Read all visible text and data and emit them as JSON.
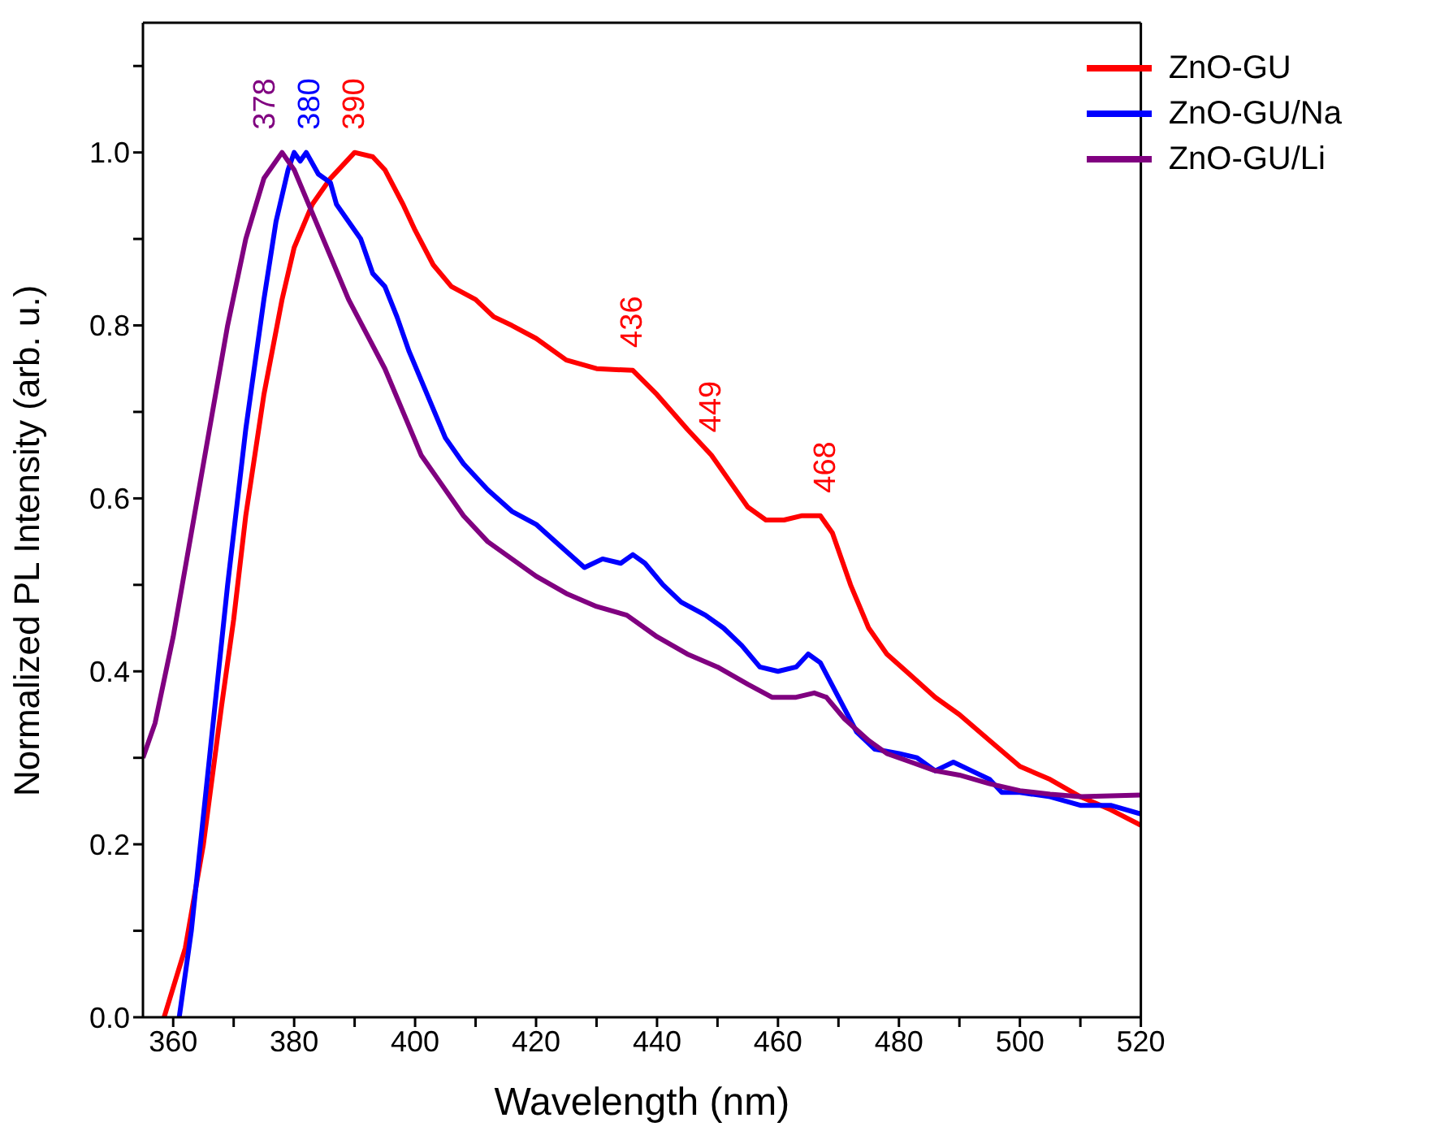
{
  "chart_data": {
    "type": "line",
    "xlabel": "Wavelength (nm)",
    "ylabel": "Normalized PL Intensity (arb. u.)",
    "xlim": [
      355,
      520
    ],
    "ylim": [
      0,
      1.15
    ],
    "xticks": [
      360,
      {
        "value": 370,
        "label": null
      },
      380,
      {
        "value": 390,
        "label": null
      },
      400,
      {
        "value": 410,
        "label": null
      },
      420,
      {
        "value": 430,
        "label": null
      },
      440,
      {
        "value": 450,
        "label": null
      },
      460,
      {
        "value": 470,
        "label": null
      },
      480,
      {
        "value": 490,
        "label": null
      },
      500,
      {
        "value": 510,
        "label": null
      },
      520
    ],
    "yticks": [
      {
        "value": 0,
        "label": "0.0"
      },
      {
        "value": 0.1,
        "label": null
      },
      {
        "value": 0.2,
        "label": "0.2"
      },
      {
        "value": 0.3,
        "label": null
      },
      {
        "value": 0.4,
        "label": "0.4"
      },
      {
        "value": 0.5,
        "label": null
      },
      {
        "value": 0.6,
        "label": "0.6"
      },
      {
        "value": 0.7,
        "label": null
      },
      {
        "value": 0.8,
        "label": "0.8"
      },
      {
        "value": 0.9,
        "label": null
      },
      {
        "value": 1.0,
        "label": "1.0"
      },
      {
        "value": 1.1,
        "label": null
      }
    ],
    "grid": false,
    "legend": "top right",
    "marker": "none",
    "line_style": "solid",
    "series": [
      {
        "name": "ZnO-GU",
        "color": "#ff0000",
        "x": [
          358.5,
          362,
          365,
          368,
          370,
          372,
          375,
          378,
          380,
          383,
          386,
          390,
          393,
          395,
          398,
          400,
          403,
          406,
          410,
          413,
          416,
          420,
          425,
          430,
          436,
          440,
          445,
          449,
          452,
          455,
          458,
          461,
          464,
          467,
          469,
          472,
          475,
          478,
          482,
          486,
          490,
          495,
          500,
          505,
          510,
          515,
          520
        ],
        "values": [
          0,
          0.08,
          0.2,
          0.36,
          0.46,
          0.58,
          0.72,
          0.83,
          0.89,
          0.94,
          0.97,
          1.0,
          0.995,
          0.98,
          0.94,
          0.91,
          0.87,
          0.845,
          0.83,
          0.81,
          0.8,
          0.785,
          0.76,
          0.75,
          0.748,
          0.72,
          0.68,
          0.65,
          0.62,
          0.59,
          0.575,
          0.575,
          0.58,
          0.58,
          0.56,
          0.5,
          0.45,
          0.42,
          0.395,
          0.37,
          0.35,
          0.32,
          0.29,
          0.275,
          0.255,
          0.24,
          0.222
        ]
      },
      {
        "name": "ZnO-GU/Na",
        "color": "#0000ff",
        "x": [
          361,
          363,
          366,
          369,
          372,
          375,
          377,
          379,
          380,
          381,
          382,
          384,
          386,
          387,
          389,
          391,
          393,
          395,
          397,
          399,
          402,
          405,
          408,
          412,
          416,
          420,
          424,
          428,
          431,
          434,
          436,
          438,
          441,
          444,
          448,
          451,
          454,
          457,
          460,
          463,
          465,
          467,
          470,
          473,
          476,
          480,
          483,
          486,
          489,
          492,
          495,
          497,
          500,
          505,
          510,
          515,
          520
        ],
        "values": [
          0,
          0.1,
          0.3,
          0.5,
          0.68,
          0.83,
          0.92,
          0.98,
          1.0,
          0.99,
          1.0,
          0.975,
          0.965,
          0.94,
          0.92,
          0.9,
          0.86,
          0.845,
          0.81,
          0.77,
          0.72,
          0.67,
          0.64,
          0.61,
          0.585,
          0.57,
          0.545,
          0.52,
          0.53,
          0.525,
          0.535,
          0.525,
          0.5,
          0.48,
          0.465,
          0.45,
          0.43,
          0.405,
          0.4,
          0.405,
          0.42,
          0.41,
          0.37,
          0.33,
          0.31,
          0.305,
          0.3,
          0.285,
          0.295,
          0.285,
          0.275,
          0.26,
          0.26,
          0.255,
          0.245,
          0.245,
          0.235
        ]
      },
      {
        "name": "ZnO-GU/Li",
        "color": "#800080",
        "x": [
          355,
          357,
          360,
          363,
          366,
          369,
          372,
          375,
          378,
          380,
          383,
          386,
          389,
          392,
          395,
          398,
          401,
          404,
          408,
          412,
          416,
          420,
          425,
          430,
          435,
          440,
          445,
          450,
          455,
          459,
          463,
          466,
          468,
          471,
          475,
          478,
          482,
          486,
          490,
          495,
          500,
          505,
          510,
          515,
          520
        ],
        "values": [
          0.3,
          0.34,
          0.44,
          0.56,
          0.68,
          0.8,
          0.9,
          0.97,
          1.0,
          0.98,
          0.93,
          0.88,
          0.83,
          0.79,
          0.75,
          0.7,
          0.65,
          0.62,
          0.58,
          0.55,
          0.53,
          0.51,
          0.49,
          0.475,
          0.465,
          0.44,
          0.42,
          0.405,
          0.385,
          0.37,
          0.37,
          0.375,
          0.37,
          0.345,
          0.32,
          0.305,
          0.295,
          0.285,
          0.28,
          0.27,
          0.262,
          0.258,
          0.255,
          0.256,
          0.257
        ]
      }
    ],
    "annotations": [
      {
        "text": "378",
        "x": 378,
        "y": 1.0
      },
      {
        "text": "380",
        "x": 380,
        "y": 1.0
      },
      {
        "text": "390",
        "x": 390,
        "y": 1.0
      },
      {
        "text": "436",
        "x": 436,
        "y": 0.748
      },
      {
        "text": "449",
        "x": 449,
        "y": 0.65
      },
      {
        "text": "468",
        "x": 468,
        "y": 0.58
      }
    ]
  }
}
